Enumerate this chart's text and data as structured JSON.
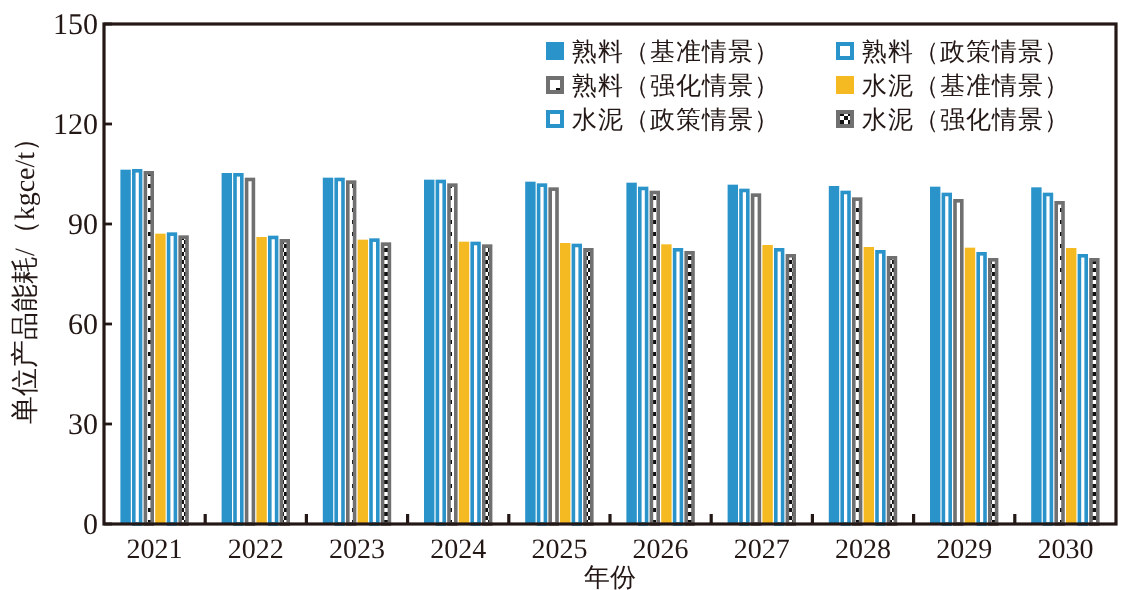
{
  "chart_data": {
    "type": "bar",
    "xlabel": "年份",
    "ylabel": "单位产品能耗/（kgce/t）",
    "categories": [
      "2021",
      "2022",
      "2023",
      "2024",
      "2025",
      "2026",
      "2027",
      "2028",
      "2029",
      "2030"
    ],
    "series": [
      {
        "name": "熟料（基准情景）",
        "color": "#2a93c9",
        "values": [
          106.3,
          105.3,
          103.9,
          103.3,
          102.7,
          102.4,
          101.8,
          101.4,
          101.2,
          101.0
        ]
      },
      {
        "name": "熟料（政策情景）",
        "color": "#2a93c9",
        "values": [
          106.5,
          105.3,
          103.9,
          103.3,
          102.2,
          101.2,
          100.6,
          100.0,
          99.4,
          99.4
        ]
      },
      {
        "name": "熟料（强化情景）",
        "color": "#707070",
        "values": [
          105.9,
          103.9,
          103.1,
          102.2,
          101.0,
          100.0,
          99.2,
          98.0,
          97.5,
          96.9
        ]
      },
      {
        "name": "水泥（基准情景）",
        "color": "#f5b922",
        "values": [
          87.1,
          86.1,
          85.3,
          84.7,
          84.3,
          83.9,
          83.7,
          83.1,
          82.9,
          82.8
        ]
      },
      {
        "name": "水泥（政策情景）",
        "color": "#2a93c9",
        "values": [
          87.5,
          86.5,
          85.7,
          84.7,
          84.1,
          82.8,
          82.8,
          82.2,
          81.6,
          81.0
        ]
      },
      {
        "name": "水泥（强化情景）",
        "color": "#707070",
        "values": [
          86.6,
          85.5,
          84.5,
          83.9,
          82.8,
          81.9,
          81.0,
          80.4,
          79.8,
          79.8
        ]
      }
    ],
    "ylim": [
      0,
      150
    ],
    "yticks": [
      0,
      30,
      60,
      90,
      120,
      150
    ],
    "grid": false,
    "legend": "top right"
  }
}
